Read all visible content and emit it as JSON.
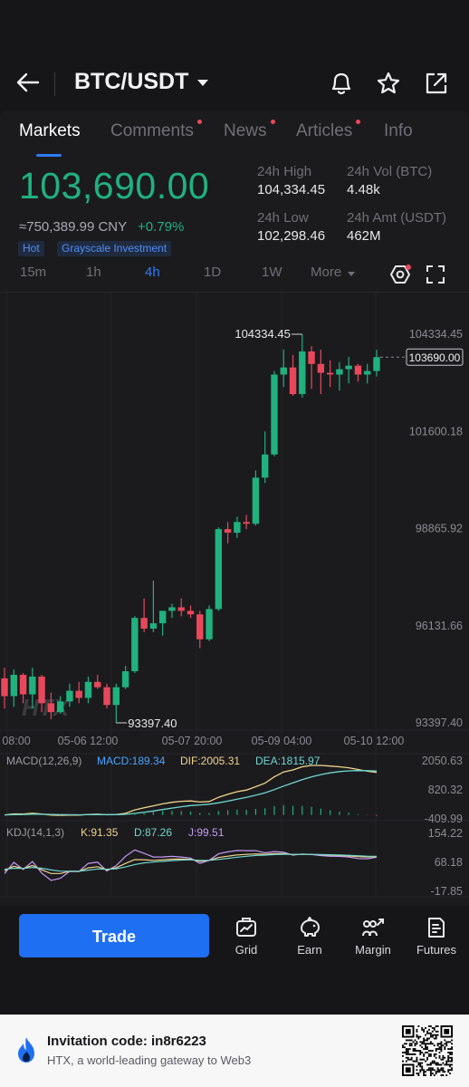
{
  "header": {
    "pair": "BTC/USDT",
    "icons": [
      "back-arrow-icon",
      "bell-icon",
      "star-icon",
      "share-icon"
    ]
  },
  "tabs": [
    {
      "label": "Markets",
      "active": true,
      "dot": false
    },
    {
      "label": "Comments",
      "active": false,
      "dot": true
    },
    {
      "label": "News",
      "active": false,
      "dot": true
    },
    {
      "label": "Articles",
      "active": false,
      "dot": true
    },
    {
      "label": "Info",
      "active": false,
      "dot": false
    }
  ],
  "ticker": {
    "last_price": "103,690.00",
    "cny": "≈750,389.99 CNY",
    "change": "+0.79%",
    "badges": [
      "Hot",
      "Grayscale Investment"
    ],
    "stats": [
      {
        "label": "24h High",
        "value": "104,334.45"
      },
      {
        "label": "24h Vol (BTC)",
        "value": "4.48k"
      },
      {
        "label": "24h Low",
        "value": "102,298.46"
      },
      {
        "label": "24h Amt (USDT)",
        "value": "462M"
      }
    ],
    "colors": {
      "up": "#20b17f",
      "down": "#e9485b",
      "accent": "#2e7cf6"
    }
  },
  "intervals": [
    {
      "label": "15m",
      "active": false
    },
    {
      "label": "1h",
      "active": false
    },
    {
      "label": "4h",
      "active": true
    },
    {
      "label": "1D",
      "active": false
    },
    {
      "label": "1W",
      "active": false
    },
    {
      "label": "More",
      "active": false
    }
  ],
  "chart_data": {
    "type": "candlestick",
    "y_axis_labels": [
      "104334.45",
      "101600.18",
      "98865.92",
      "96131.66",
      "93397.40"
    ],
    "ylim": [
      93397.4,
      104334.45
    ],
    "current_price_tag": "103690.00",
    "high_marker": "104334.45",
    "low_marker": "93397.40",
    "x_axis_labels": [
      "08:00",
      "05-06 12:00",
      "05-07 20:00",
      "05-09 04:00",
      "05-10 12:00"
    ],
    "watermark": "HTX",
    "candles": [
      {
        "o": 94650,
        "h": 94950,
        "l": 93800,
        "c": 94150
      },
      {
        "o": 94150,
        "h": 94900,
        "l": 93850,
        "c": 94750
      },
      {
        "o": 94750,
        "h": 94800,
        "l": 93950,
        "c": 94200
      },
      {
        "o": 94200,
        "h": 94950,
        "l": 93800,
        "c": 94700
      },
      {
        "o": 94700,
        "h": 94750,
        "l": 93700,
        "c": 93950
      },
      {
        "o": 93950,
        "h": 94250,
        "l": 93500,
        "c": 93700
      },
      {
        "o": 93700,
        "h": 94150,
        "l": 93650,
        "c": 94000
      },
      {
        "o": 94000,
        "h": 94500,
        "l": 93850,
        "c": 94300
      },
      {
        "o": 94300,
        "h": 94550,
        "l": 93950,
        "c": 94100
      },
      {
        "o": 94100,
        "h": 94700,
        "l": 93950,
        "c": 94550
      },
      {
        "o": 94550,
        "h": 94750,
        "l": 94350,
        "c": 94400
      },
      {
        "o": 94400,
        "h": 94500,
        "l": 93800,
        "c": 93900
      },
      {
        "o": 93900,
        "h": 94500,
        "l": 93397,
        "c": 94400
      },
      {
        "o": 94400,
        "h": 95000,
        "l": 94350,
        "c": 94850
      },
      {
        "o": 94850,
        "h": 96400,
        "l": 94800,
        "c": 96350
      },
      {
        "o": 96350,
        "h": 96900,
        "l": 95950,
        "c": 96050
      },
      {
        "o": 96050,
        "h": 97400,
        "l": 95950,
        "c": 96200
      },
      {
        "o": 96200,
        "h": 96550,
        "l": 95850,
        "c": 96550
      },
      {
        "o": 96550,
        "h": 96750,
        "l": 96350,
        "c": 96650
      },
      {
        "o": 96650,
        "h": 96900,
        "l": 96400,
        "c": 96550
      },
      {
        "o": 96550,
        "h": 96700,
        "l": 96350,
        "c": 96450
      },
      {
        "o": 96450,
        "h": 96550,
        "l": 95500,
        "c": 95750
      },
      {
        "o": 95750,
        "h": 96700,
        "l": 95700,
        "c": 96600
      },
      {
        "o": 96600,
        "h": 98900,
        "l": 96550,
        "c": 98850
      },
      {
        "o": 98850,
        "h": 99050,
        "l": 98450,
        "c": 98750
      },
      {
        "o": 98750,
        "h": 99200,
        "l": 98600,
        "c": 99050
      },
      {
        "o": 99050,
        "h": 99250,
        "l": 98850,
        "c": 99000
      },
      {
        "o": 99000,
        "h": 100500,
        "l": 98950,
        "c": 100300
      },
      {
        "o": 100300,
        "h": 101600,
        "l": 100150,
        "c": 100950
      },
      {
        "o": 100950,
        "h": 103300,
        "l": 100900,
        "c": 103200
      },
      {
        "o": 103200,
        "h": 103900,
        "l": 102850,
        "c": 103400
      },
      {
        "o": 103400,
        "h": 103750,
        "l": 102600,
        "c": 102650
      },
      {
        "o": 102650,
        "h": 104334,
        "l": 102550,
        "c": 103850
      },
      {
        "o": 103850,
        "h": 104000,
        "l": 102800,
        "c": 103500
      },
      {
        "o": 103500,
        "h": 103900,
        "l": 102650,
        "c": 103250
      },
      {
        "o": 103250,
        "h": 103600,
        "l": 102850,
        "c": 103200
      },
      {
        "o": 103200,
        "h": 103550,
        "l": 102750,
        "c": 103350
      },
      {
        "o": 103350,
        "h": 103700,
        "l": 102950,
        "c": 103450
      },
      {
        "o": 103450,
        "h": 103500,
        "l": 103000,
        "c": 103200
      },
      {
        "o": 103200,
        "h": 103500,
        "l": 102950,
        "c": 103300
      },
      {
        "o": 103300,
        "h": 103900,
        "l": 103150,
        "c": 103690
      }
    ],
    "macd": {
      "label": "MACD(12,26,9)",
      "macd_label": "MACD:189.34",
      "dif_label": "DIF:2005.31",
      "dea_label": "DEA:1815.97",
      "y_axis_labels": [
        "2050.63",
        "820.32",
        "-409.99"
      ],
      "ylim": [
        -409.99,
        2050.63
      ]
    },
    "kdj": {
      "label": "KDJ(14,1,3)",
      "k_label": "K:91.35",
      "d_label": "D:87.26",
      "j_label": "J:99.51",
      "y_axis_labels": [
        "154.22",
        "68.18",
        "-17.85"
      ],
      "ylim": [
        -17.85,
        154.22
      ]
    }
  },
  "actions": {
    "trade": "Trade",
    "items": [
      {
        "label": "Grid",
        "icon": "grid-bot-icon"
      },
      {
        "label": "Earn",
        "icon": "piggy-bank-icon"
      },
      {
        "label": "Margin",
        "icon": "margin-icon"
      },
      {
        "label": "Futures",
        "icon": "futures-icon"
      }
    ]
  },
  "invite": {
    "title": "Invitation code: in8r6223",
    "subtitle": "HTX, a world-leading gateway to Web3"
  }
}
